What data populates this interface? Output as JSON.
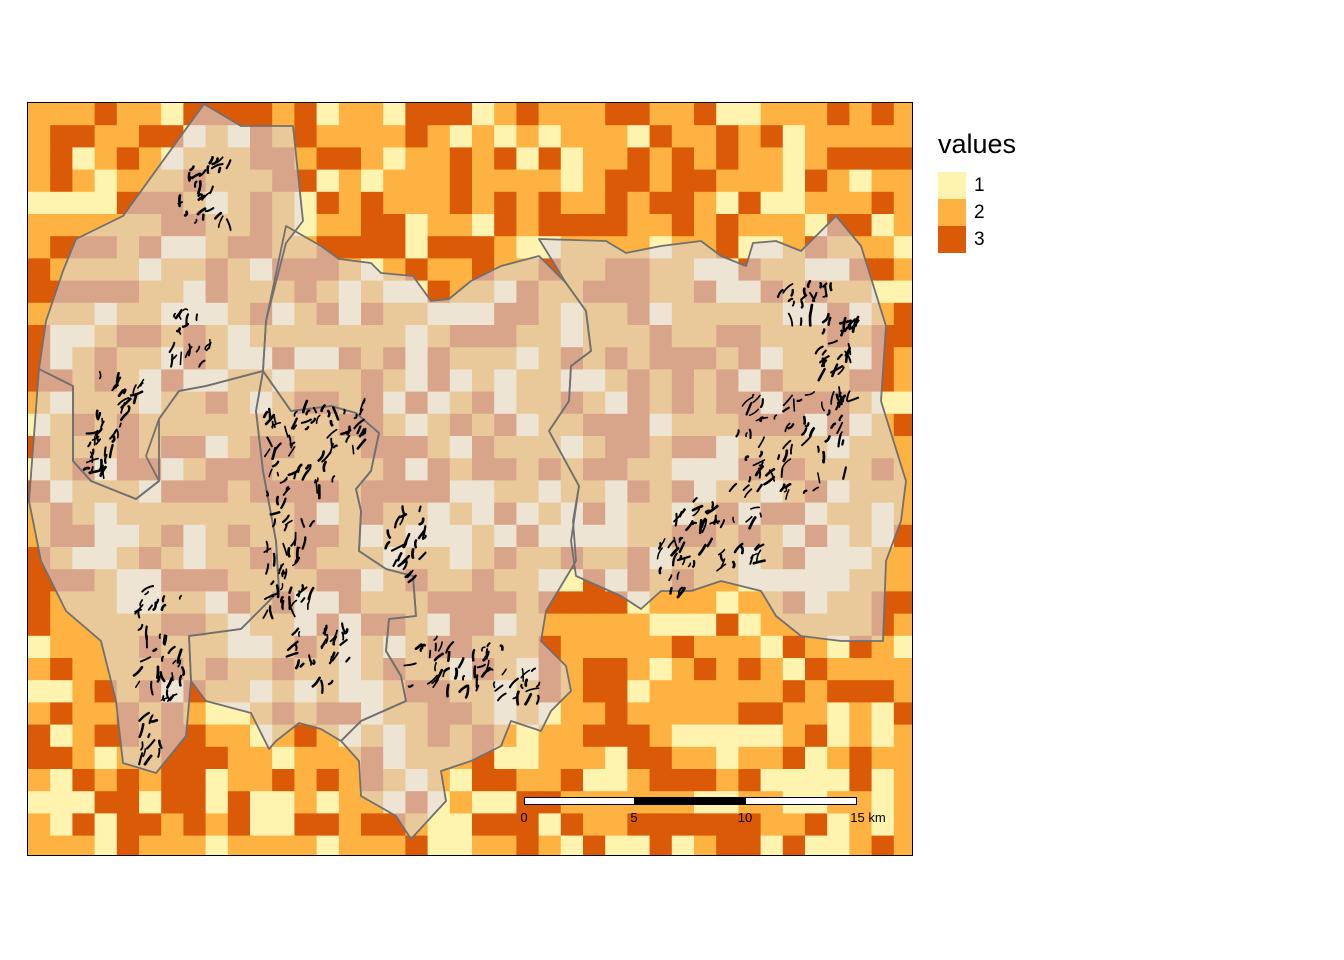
{
  "legend": {
    "title": "values",
    "items": [
      {
        "label": "1",
        "color": "#FFF3B0"
      },
      {
        "label": "2",
        "color": "#FDB242"
      },
      {
        "label": "3",
        "color": "#DA5A07"
      }
    ]
  },
  "inside_colors": {
    "1": "#EDE4D3",
    "2": "#E9C999",
    "3": "#D9A58A"
  },
  "scale_bar": {
    "labels": [
      "0",
      "5",
      "10",
      "15 km"
    ],
    "segment_colors": [
      "#ffffff",
      "#000000",
      "#ffffff"
    ]
  },
  "icons": [
    "study-area-polygons",
    "black-line-features"
  ]
}
